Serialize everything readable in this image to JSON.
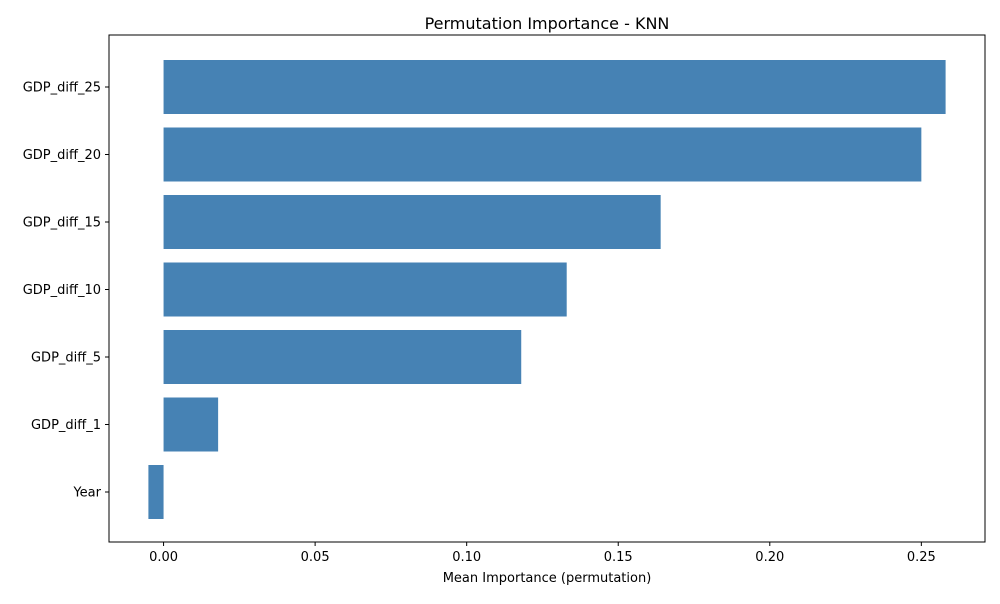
{
  "chart_data": {
    "type": "bar",
    "orientation": "horizontal",
    "title": "Permutation Importance - KNN",
    "xlabel": "Mean Importance (permutation)",
    "ylabel": "",
    "categories": [
      "GDP_diff_25",
      "GDP_diff_20",
      "GDP_diff_15",
      "GDP_diff_10",
      "GDP_diff_5",
      "GDP_diff_1",
      "Year"
    ],
    "values": [
      0.258,
      0.25,
      0.164,
      0.133,
      0.118,
      0.018,
      -0.005
    ],
    "xlim": [
      -0.018,
      0.271
    ],
    "xticks": [
      0.0,
      0.05,
      0.1,
      0.15,
      0.2,
      0.25
    ],
    "xtick_labels": [
      "0.00",
      "0.05",
      "0.10",
      "0.15",
      "0.20",
      "0.25"
    ],
    "grid": false,
    "bar_color": "#4682b4"
  }
}
